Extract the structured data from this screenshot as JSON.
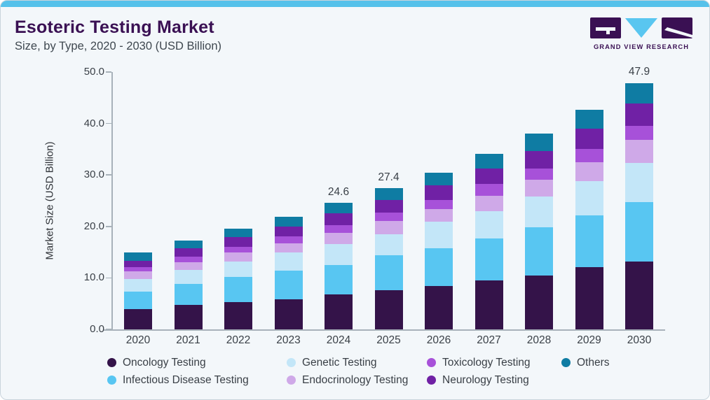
{
  "header": {
    "title": "Esoteric Testing Market",
    "subtitle": "Size, by Type, 2020 - 2030 (USD Billion)"
  },
  "logo": {
    "text": "GRAND VIEW RESEARCH"
  },
  "colors": {
    "accent_bar": "#55C1EA",
    "title_text": "#3A1053",
    "logo_purple": "#3A1053",
    "logo_blue": "#59C6F0",
    "axis": "#A8B2BA",
    "card_bg": "#F3F7FA",
    "card_border": "#C9D4DC"
  },
  "chart_data": {
    "type": "bar",
    "stacked": true,
    "title": "Esoteric Testing Market Size, by Type, 2020 - 2030 (USD Billion)",
    "xlabel": "",
    "ylabel": "Market Size (USD Billion)",
    "ylim": [
      0,
      50
    ],
    "ytick_labels": [
      "0.0",
      "10.0",
      "20.0",
      "30.0",
      "40.0",
      "50.0"
    ],
    "grid": false,
    "legend_position": "bottom",
    "categories": [
      "2020",
      "2021",
      "2022",
      "2023",
      "2024",
      "2025",
      "2026",
      "2027",
      "2028",
      "2029",
      "2030"
    ],
    "series": [
      {
        "name": "Oncology Testing",
        "color": "#341349",
        "values": [
          4.0,
          4.7,
          5.3,
          5.9,
          6.8,
          7.6,
          8.4,
          9.5,
          10.4,
          12.1,
          13.2
        ]
      },
      {
        "name": "Infectious Disease Testing",
        "color": "#58C6F2",
        "values": [
          3.4,
          4.1,
          4.9,
          5.5,
          5.7,
          6.8,
          7.4,
          8.1,
          9.4,
          10.0,
          11.5
        ]
      },
      {
        "name": "Genetic Testing",
        "color": "#C3E6F8",
        "values": [
          2.4,
          2.8,
          3.0,
          3.5,
          4.1,
          4.1,
          5.1,
          5.3,
          6.0,
          6.7,
          7.7
        ]
      },
      {
        "name": "Endocrinology Testing",
        "color": "#CFA9E8",
        "values": [
          1.5,
          1.4,
          1.7,
          1.8,
          2.2,
          2.5,
          2.5,
          3.1,
          3.3,
          3.7,
          4.4
        ]
      },
      {
        "name": "Toxicology Testing",
        "color": "#A751D9",
        "values": [
          0.8,
          1.1,
          1.2,
          1.4,
          1.4,
          1.7,
          1.8,
          2.2,
          2.1,
          2.6,
          2.8
        ]
      },
      {
        "name": "Neurology Testing",
        "color": "#7021A5",
        "values": [
          1.2,
          1.6,
          1.8,
          1.9,
          2.4,
          2.5,
          2.8,
          3.0,
          3.5,
          3.9,
          4.3
        ]
      },
      {
        "name": "Others",
        "color": "#0F7CA3",
        "values": [
          1.6,
          1.6,
          1.7,
          1.9,
          2.0,
          2.2,
          2.5,
          2.9,
          3.4,
          3.7,
          4.0
        ]
      }
    ],
    "total_labels": {
      "2024": "24.6",
      "2025": "27.4",
      "2030": "47.9"
    }
  }
}
